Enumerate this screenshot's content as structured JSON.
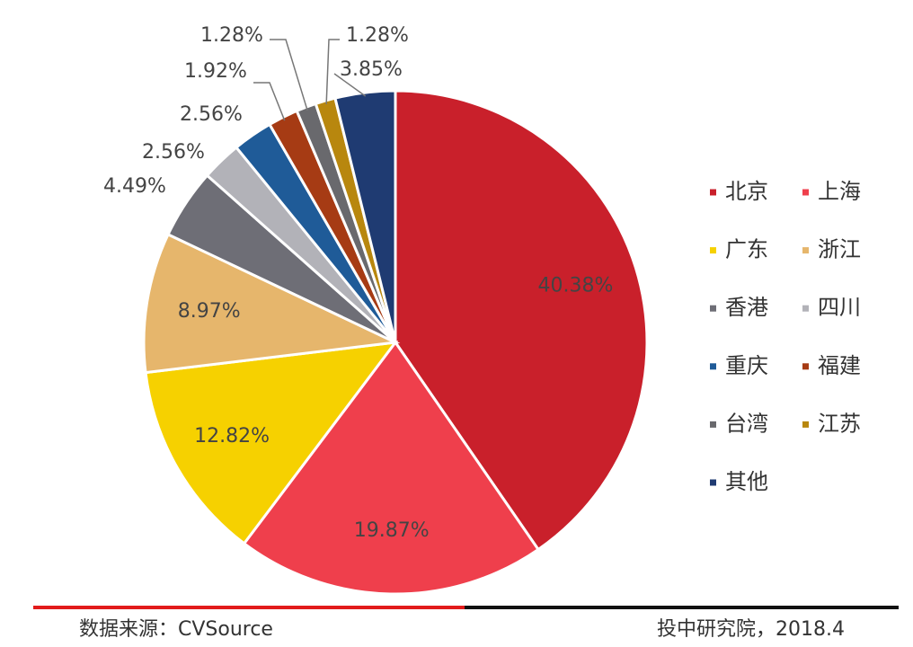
{
  "chart_data": {
    "type": "pie",
    "categories": [
      "北京",
      "上海",
      "广东",
      "浙江",
      "香港",
      "四川",
      "重庆",
      "福建",
      "台湾",
      "江苏",
      "其他"
    ],
    "values": [
      40.38,
      19.87,
      12.82,
      8.97,
      4.49,
      2.56,
      2.56,
      1.92,
      1.28,
      1.28,
      3.85
    ],
    "value_labels": [
      "40.38%",
      "19.87%",
      "12.82%",
      "8.97%",
      "4.49%",
      "2.56%",
      "2.56%",
      "1.92%",
      "1.28%",
      "1.28%",
      "3.85%"
    ],
    "colors": [
      "#c9202b",
      "#ef3f4c",
      "#f6d100",
      "#e6b66c",
      "#6e6e76",
      "#b2b2b8",
      "#1f5b98",
      "#a63b14",
      "#69696d",
      "#b8870e",
      "#1f3b72"
    ],
    "legend": "right",
    "source": "数据来源：CVSource",
    "credit": "投中研究院，2018.4"
  }
}
